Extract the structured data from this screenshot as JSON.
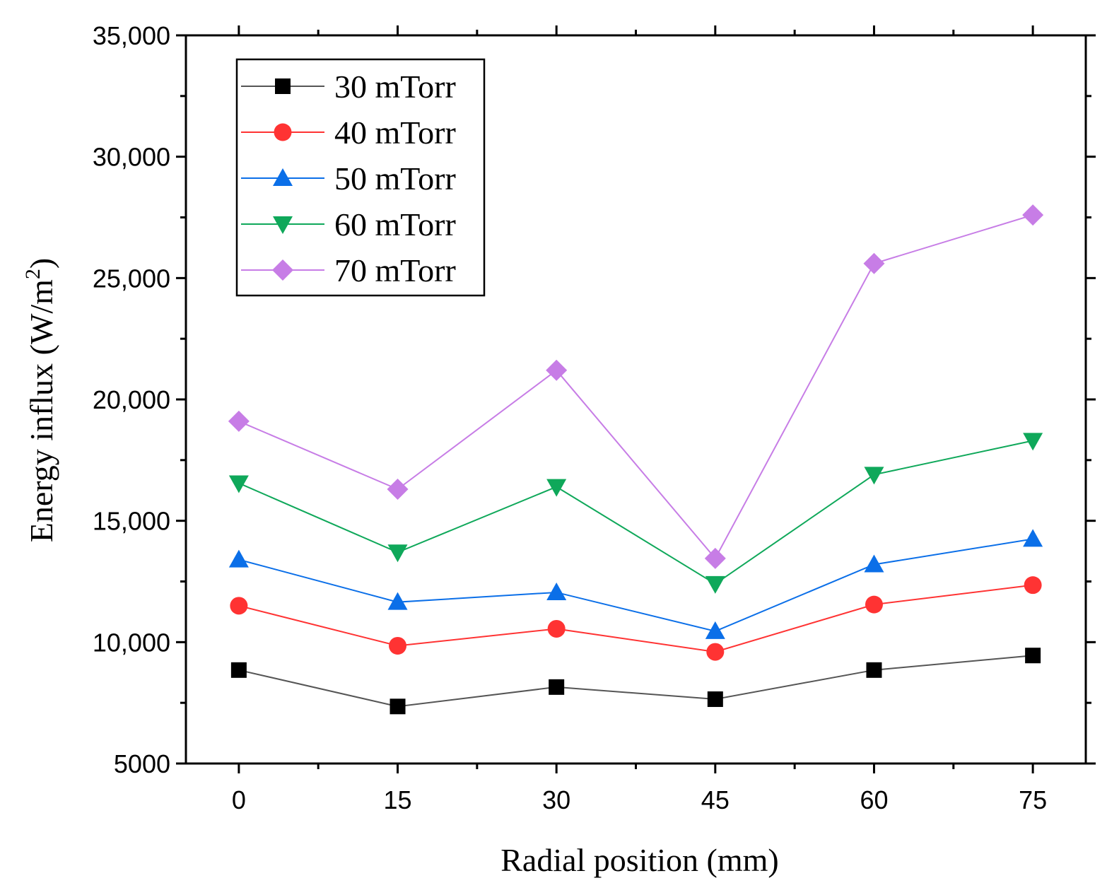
{
  "chart_data": {
    "type": "line",
    "title": "",
    "xlabel": "Radial position (mm)",
    "ylabel": "Energy influx (W/m",
    "ylabel_superscript": "2",
    "ylabel_suffix": ")",
    "x": [
      0,
      15,
      30,
      45,
      60,
      75
    ],
    "xlim": [
      -5,
      80
    ],
    "ylim": [
      5000,
      35000
    ],
    "x_ticks": [
      0,
      15,
      30,
      45,
      60,
      75
    ],
    "x_tick_labels": [
      "0",
      "15",
      "30",
      "45",
      "60",
      "75"
    ],
    "y_ticks": [
      5000,
      10000,
      15000,
      20000,
      25000,
      30000,
      35000
    ],
    "y_tick_labels": [
      "5000",
      "10,000",
      "15,000",
      "20,000",
      "25,000",
      "30,000",
      "35,000"
    ],
    "grid": false,
    "legend_position": "top-left",
    "series": [
      {
        "name": "30 mTorr",
        "color": "#000000",
        "line_color": "#555555",
        "marker": "square",
        "values": [
          8850,
          7350,
          8150,
          7650,
          8850,
          9450
        ]
      },
      {
        "name": "40 mTorr",
        "color": "#ff3333",
        "line_color": "#ff3333",
        "marker": "circle",
        "values": [
          11500,
          9850,
          10550,
          9600,
          11550,
          12350
        ]
      },
      {
        "name": "50 mTorr",
        "color": "#0b6fe8",
        "line_color": "#0b6fe8",
        "marker": "triangle-up",
        "values": [
          13400,
          11650,
          12050,
          10450,
          13200,
          14250
        ]
      },
      {
        "name": "60 mTorr",
        "color": "#0fa85a",
        "line_color": "#0fa85a",
        "marker": "triangle-down",
        "values": [
          16550,
          13700,
          16400,
          12400,
          16900,
          18300
        ]
      },
      {
        "name": "70 mTorr",
        "color": "#c77de6",
        "line_color": "#c77de6",
        "marker": "diamond",
        "values": [
          19100,
          16300,
          21200,
          13450,
          25600,
          27600
        ]
      }
    ]
  }
}
